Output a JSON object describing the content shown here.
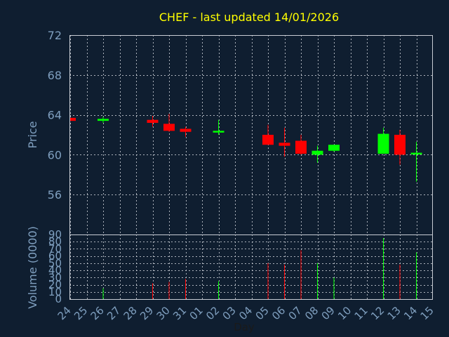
{
  "colors": {
    "background": "#0f1e30",
    "title": "#ffff00",
    "tick_text": "#7f9fbf",
    "grid": "#c8ccd4",
    "up": "#00ff00",
    "down": "#ff0000",
    "xlabel": "#1a1a1a"
  },
  "chart_data": {
    "type": "candlestick",
    "title": "CHEF - last updated 14/01/2026",
    "xlabel": "Day",
    "ylabel_price": "Price",
    "ylabel_volume": "Volume (0000)",
    "price_ylim": [
      52,
      72
    ],
    "price_yticks": [
      "72",
      "68",
      "64",
      "60",
      "56"
    ],
    "volume_ylim": [
      0,
      90
    ],
    "volume_yticks": [
      "90",
      "80",
      "70",
      "60",
      "50",
      "40",
      "30",
      "20",
      "10",
      "0"
    ],
    "grid": true,
    "x_labels": [
      "24",
      "25",
      "26",
      "27",
      "28",
      "29",
      "30",
      "31",
      "01",
      "02",
      "03",
      "04",
      "05",
      "06",
      "07",
      "08",
      "09",
      "10",
      "11",
      "12",
      "13",
      "14",
      "15"
    ],
    "candles": [
      {
        "day": "24",
        "open": 63.7,
        "close": 63.4,
        "high": 63.7,
        "low": 63.4,
        "volume": 0
      },
      {
        "day": "26",
        "open": 63.4,
        "close": 63.6,
        "high": 63.8,
        "low": 63.2,
        "volume": 15
      },
      {
        "day": "29",
        "open": 63.5,
        "close": 63.2,
        "high": 63.9,
        "low": 62.8,
        "volume": 22
      },
      {
        "day": "30",
        "open": 63.1,
        "close": 62.4,
        "high": 64.1,
        "low": 62.3,
        "volume": 24
      },
      {
        "day": "31",
        "open": 62.6,
        "close": 62.3,
        "high": 62.8,
        "low": 61.8,
        "volume": 28
      },
      {
        "day": "02",
        "open": 62.3,
        "close": 62.4,
        "high": 63.5,
        "low": 62.0,
        "volume": 25
      },
      {
        "day": "05",
        "open": 62.0,
        "close": 61.0,
        "high": 63.0,
        "low": 61.0,
        "volume": 50
      },
      {
        "day": "06",
        "open": 61.2,
        "close": 60.9,
        "high": 62.7,
        "low": 59.8,
        "volume": 48
      },
      {
        "day": "07",
        "open": 61.4,
        "close": 60.1,
        "high": 62.0,
        "low": 60.0,
        "volume": 68
      },
      {
        "day": "08",
        "open": 60.0,
        "close": 60.4,
        "high": 60.9,
        "low": 59.2,
        "volume": 50
      },
      {
        "day": "09",
        "open": 60.4,
        "close": 61.0,
        "high": 61.0,
        "low": 60.3,
        "volume": 30
      },
      {
        "day": "12",
        "open": 60.1,
        "close": 62.1,
        "high": 62.7,
        "low": 60.1,
        "volume": 85
      },
      {
        "day": "13",
        "open": 62.0,
        "close": 60.0,
        "high": 62.5,
        "low": 59.0,
        "volume": 48
      },
      {
        "day": "14",
        "open": 60.1,
        "close": 60.2,
        "high": 61.3,
        "low": 57.3,
        "volume": 65
      }
    ]
  }
}
